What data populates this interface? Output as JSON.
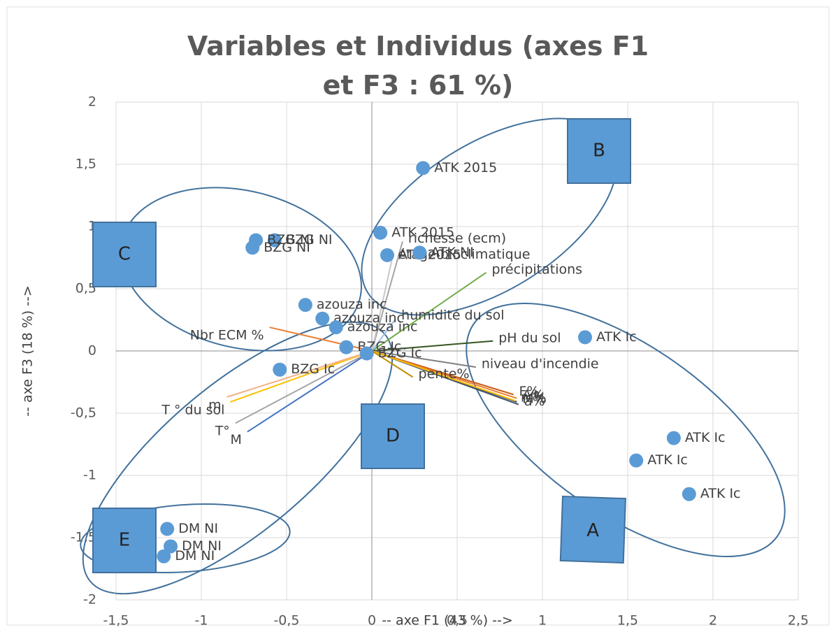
{
  "chart_data": {
    "type": "biplot",
    "title": "Variables et Individus (axes F1 et F3 : 61 %)",
    "x_label": "-- axe F1 (43 %) -->",
    "y_label": "-- axe F3 (18 %) -->",
    "xlim": [
      -1.5,
      2.5
    ],
    "ylim": [
      -2,
      2
    ],
    "xticks": [
      {
        "value": -1.5,
        "label": "-1,5"
      },
      -1,
      {
        "value": -0.5,
        "label": "-0,5"
      },
      0,
      {
        "value": 0.5,
        "label": "0,5"
      },
      1,
      {
        "value": 1.5,
        "label": "1,5"
      },
      2,
      {
        "value": 2.5,
        "label": "2,5"
      }
    ],
    "yticks": [
      -2,
      {
        "value": -1.5,
        "label": "-1,5"
      },
      -1,
      {
        "value": -0.5,
        "label": "-0,5"
      },
      0,
      {
        "value": 0.5,
        "label": "0,5"
      },
      1,
      {
        "value": 1.5,
        "label": "1,5"
      },
      2
    ],
    "grid": true,
    "point_color": "#5b9bd5",
    "points": [
      {
        "label": "ATK 2015",
        "x": 0.3,
        "y": 1.47
      },
      {
        "label": "ATK 2015",
        "x": 0.05,
        "y": 0.95
      },
      {
        "label": "ATK 2015",
        "x": 0.09,
        "y": 0.77
      },
      {
        "label": "ATK NI",
        "x": 0.28,
        "y": 0.79
      },
      {
        "label": "BZG NI",
        "x": -0.57,
        "y": 0.89
      },
      {
        "label": "BZG NI",
        "x": -0.68,
        "y": 0.89
      },
      {
        "label": "BZG NI",
        "x": -0.7,
        "y": 0.83
      },
      {
        "label": "azouza inc",
        "x": -0.39,
        "y": 0.37
      },
      {
        "label": "azouza inc",
        "x": -0.29,
        "y": 0.26
      },
      {
        "label": "azouza inc",
        "x": -0.21,
        "y": 0.19
      },
      {
        "label": "BZG Ic",
        "x": -0.15,
        "y": 0.03
      },
      {
        "label": "BZG Ic",
        "x": -0.03,
        "y": -0.02
      },
      {
        "label": "BZG Ic",
        "x": -0.54,
        "y": -0.15
      },
      {
        "label": "ATK Ic",
        "x": 1.25,
        "y": 0.11
      },
      {
        "label": "ATK Ic",
        "x": 1.77,
        "y": -0.7
      },
      {
        "label": "ATK Ic",
        "x": 1.55,
        "y": -0.88
      },
      {
        "label": "ATK Ic",
        "x": 1.86,
        "y": -1.15
      },
      {
        "label": "DM NI",
        "x": -1.2,
        "y": -1.43
      },
      {
        "label": "DM NI",
        "x": -1.18,
        "y": -1.57
      },
      {
        "label": "DM NI",
        "x": -1.22,
        "y": -1.65
      }
    ],
    "vectors": [
      {
        "label": "richesse (ecm)",
        "x": 0.18,
        "y": 0.88,
        "color": "#a5a5a5"
      },
      {
        "label": "précipitations",
        "x": 0.67,
        "y": 0.63,
        "color": "#70ad47"
      },
      {
        "label": "humidité du sol",
        "x": 0.14,
        "y": 0.26,
        "color": "#9dc3e6"
      },
      {
        "label": "pH du sol",
        "x": 0.71,
        "y": 0.08,
        "color": "#375623"
      },
      {
        "label": "niveau d'incendie",
        "x": 0.61,
        "y": -0.13,
        "color": "#7f7f7f"
      },
      {
        "label": "F%",
        "x": 0.83,
        "y": -0.35,
        "color": "#c55a11"
      },
      {
        "label": "A%",
        "x": 0.85,
        "y": -0.38,
        "color": "#ed7d31"
      },
      {
        "label": "M%",
        "x": 0.85,
        "y": -0.41,
        "color": "#264478"
      },
      {
        "label": "a%",
        "x": 0.86,
        "y": -0.43,
        "color": "#44546a"
      },
      {
        "label": "m%",
        "x": 0.84,
        "y": -0.4,
        "color": "#ffc000"
      },
      {
        "label": "pente%",
        "x": 0.24,
        "y": -0.21,
        "color": "#bf9000"
      },
      {
        "label": "étage bioclimatique",
        "x": 0.12,
        "y": 0.75,
        "color": "#c9c9c9"
      },
      {
        "label": "Nbr ECM %",
        "x": -0.6,
        "y": 0.19,
        "color": "#ed7d31"
      },
      {
        "label": "T ° du sol",
        "x": -0.83,
        "y": -0.41,
        "color": "#ffc000"
      },
      {
        "label": "m",
        "x": -0.85,
        "y": -0.37,
        "color": "#f4b183"
      },
      {
        "label": "T°",
        "x": -0.8,
        "y": -0.58,
        "color": "#a5a5a5"
      },
      {
        "label": "M",
        "x": -0.73,
        "y": -0.65,
        "color": "#4472c4"
      }
    ],
    "groups": [
      "A",
      "B",
      "C",
      "D",
      "E"
    ]
  }
}
